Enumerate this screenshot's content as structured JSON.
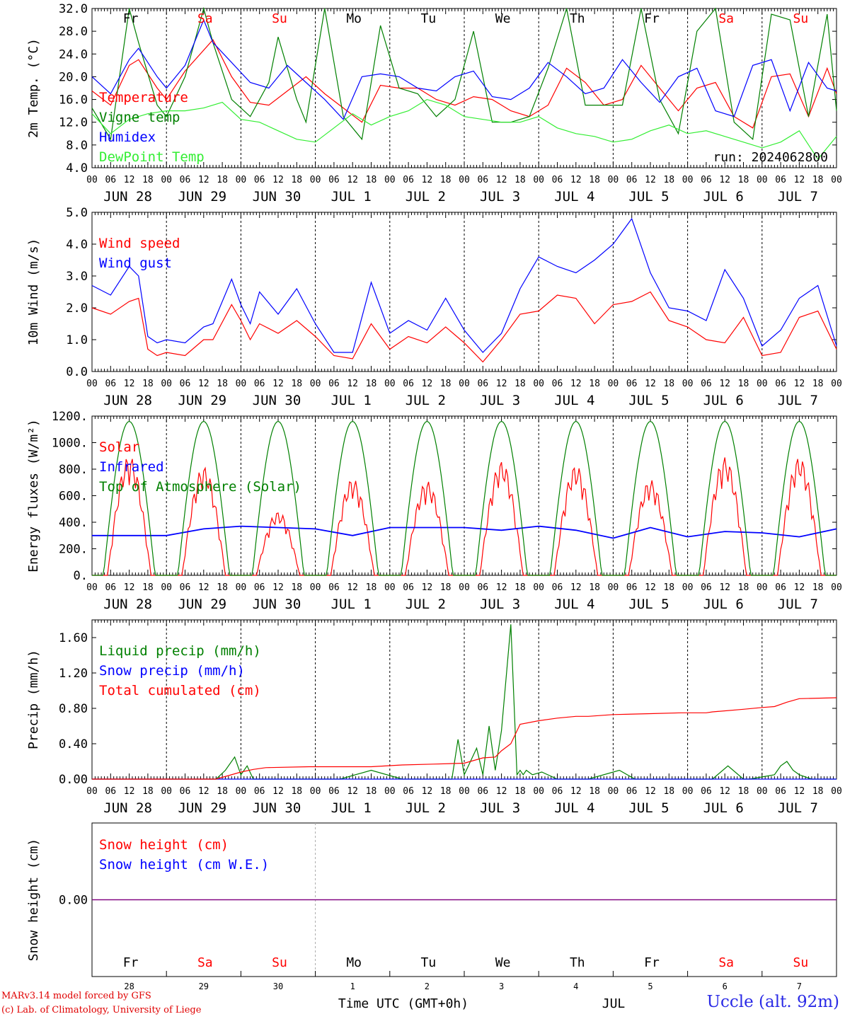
{
  "run": "run: 2024062800",
  "station": "Uccle (alt. 92m)",
  "credits": [
    "MARv3.14 model forced by GFS",
    "(c) Lab. of Climatology, University of Liege"
  ],
  "xaxis_title": "Time UTC (GMT+0h)",
  "month_label": "JUL",
  "hour_ticks": [
    "00",
    "06",
    "12",
    "18"
  ],
  "day_labels": [
    "JUN 28",
    "JUN 29",
    "JUN 30",
    "JUL  1",
    "JUL  2",
    "JUL  3",
    "JUL  4",
    "JUL  5",
    "JUL  6",
    "JUL  7"
  ],
  "day_numbers": [
    "28",
    "29",
    "30",
    "1",
    "2",
    "3",
    "4",
    "5",
    "6",
    "7"
  ],
  "weekdays": [
    {
      "label": "Fr",
      "weekend": false
    },
    {
      "label": "Sa",
      "weekend": true
    },
    {
      "label": "Su",
      "weekend": true
    },
    {
      "label": "Mo",
      "weekend": false
    },
    {
      "label": "Tu",
      "weekend": false
    },
    {
      "label": "We",
      "weekend": false
    },
    {
      "label": "Th",
      "weekend": false
    },
    {
      "label": "Fr",
      "weekend": false
    },
    {
      "label": "Sa",
      "weekend": true
    },
    {
      "label": "Su",
      "weekend": true
    }
  ],
  "colors": {
    "red": "#ff0000",
    "green": "#008000",
    "blue": "#0000ff",
    "lightgreen": "#33ee33",
    "purple": "#800080",
    "weekend": "#ff0000"
  },
  "chart_data": [
    {
      "type": "line",
      "ylabel": "2m Temp. (°C)",
      "yticks": [
        "4.0",
        "8.0",
        "12.0",
        "16.0",
        "20.0",
        "24.0",
        "28.0",
        "32.0"
      ],
      "ylim": [
        4,
        32
      ],
      "x_unit": "hours since JUN 28 00 UTC",
      "series": [
        {
          "name": "Temperature",
          "color": "#ff0000",
          "x": [
            0,
            6,
            12,
            15,
            21,
            24,
            30,
            39,
            45,
            51,
            57,
            63,
            69,
            75,
            81,
            87,
            93,
            99,
            105,
            111,
            117,
            123,
            129,
            135,
            141,
            147,
            153,
            159,
            165,
            171,
            177,
            183,
            189,
            195,
            201,
            207,
            213,
            219,
            225,
            231,
            237,
            240
          ],
          "values": [
            17.5,
            15.0,
            22.0,
            23.0,
            18.0,
            16.0,
            21.0,
            26.5,
            20.0,
            15.5,
            15.0,
            17.5,
            20.0,
            17.0,
            14.5,
            12.0,
            18.5,
            18.0,
            18.0,
            16.0,
            15.0,
            16.5,
            16.0,
            14.0,
            13.0,
            15.0,
            21.5,
            19.0,
            15.0,
            16.0,
            22.0,
            18.0,
            14.0,
            18.0,
            19.0,
            13.0,
            11.0,
            20.0,
            20.5,
            13.0,
            21.5,
            17.0
          ]
        },
        {
          "name": "Vigne temp",
          "color": "#008000",
          "x": [
            0,
            6,
            12,
            15,
            21,
            24,
            30,
            36,
            39,
            45,
            51,
            57,
            60,
            66,
            69,
            75,
            81,
            87,
            93,
            99,
            105,
            111,
            117,
            123,
            129,
            135,
            141,
            147,
            153,
            159,
            165,
            171,
            177,
            183,
            189,
            195,
            201,
            207,
            213,
            219,
            225,
            231,
            237,
            240
          ],
          "values": [
            14.5,
            9.0,
            32.0,
            26.0,
            15.0,
            13.0,
            20.0,
            32.0,
            26.0,
            16.0,
            13.0,
            19.0,
            27.0,
            16.0,
            12.0,
            32.0,
            13.0,
            9.0,
            29.0,
            18.0,
            17.0,
            13.0,
            16.0,
            28.0,
            12.0,
            12.0,
            13.0,
            21.5,
            32.0,
            15.0,
            15.0,
            15.0,
            32.0,
            16.0,
            10.0,
            28.0,
            32.0,
            12.0,
            9.0,
            31.0,
            30.0,
            13.0,
            31.0,
            14.0
          ]
        },
        {
          "name": "Humidex",
          "color": "#0000ff",
          "x": [
            0,
            6,
            12,
            15,
            21,
            24,
            30,
            36,
            39,
            45,
            51,
            57,
            63,
            69,
            75,
            81,
            87,
            93,
            99,
            105,
            111,
            117,
            123,
            129,
            135,
            141,
            147,
            153,
            159,
            165,
            171,
            177,
            183,
            189,
            195,
            201,
            207,
            213,
            219,
            225,
            231,
            237,
            240
          ],
          "values": [
            20.0,
            17.0,
            23.0,
            25.0,
            20.0,
            18.0,
            22.0,
            30.0,
            26.0,
            22.5,
            19.0,
            18.0,
            22.0,
            19.0,
            16.0,
            12.5,
            20.0,
            20.5,
            20.0,
            18.0,
            17.5,
            20.0,
            21.0,
            16.5,
            16.0,
            18.0,
            22.5,
            20.0,
            17.0,
            18.0,
            23.0,
            19.0,
            15.5,
            20.0,
            21.5,
            14.0,
            13.0,
            22.0,
            23.0,
            14.0,
            22.5,
            18.0,
            17.5
          ]
        },
        {
          "name": "DewPoint Temp",
          "color": "#33ee33",
          "x": [
            0,
            6,
            12,
            18,
            24,
            30,
            36,
            42,
            48,
            54,
            60,
            66,
            72,
            78,
            84,
            90,
            96,
            102,
            108,
            114,
            120,
            126,
            132,
            138,
            144,
            150,
            156,
            162,
            168,
            174,
            180,
            186,
            192,
            198,
            204,
            210,
            216,
            222,
            228,
            234,
            240
          ],
          "values": [
            13.5,
            10.0,
            12.5,
            13.5,
            14.0,
            14.0,
            14.5,
            15.5,
            12.5,
            12.0,
            10.5,
            9.0,
            8.5,
            11.0,
            13.5,
            11.5,
            13.0,
            14.0,
            16.0,
            15.0,
            13.0,
            12.5,
            12.0,
            12.0,
            13.0,
            11.0,
            10.0,
            9.5,
            8.5,
            9.0,
            10.5,
            11.5,
            10.0,
            10.5,
            9.5,
            8.5,
            7.5,
            8.5,
            10.5,
            5.5,
            9.5
          ]
        }
      ]
    },
    {
      "type": "line",
      "ylabel": "10m Wind (m/s)",
      "yticks": [
        "0.0",
        "1.0",
        "2.0",
        "3.0",
        "4.0",
        "5.0"
      ],
      "ylim": [
        0,
        5
      ],
      "x_unit": "hours since JUN 28 00 UTC",
      "series": [
        {
          "name": "Wind speed",
          "color": "#ff0000",
          "x": [
            0,
            6,
            12,
            15,
            18,
            21,
            24,
            30,
            36,
            39,
            45,
            48,
            51,
            54,
            60,
            66,
            72,
            78,
            84,
            90,
            96,
            102,
            108,
            114,
            120,
            126,
            132,
            138,
            144,
            150,
            156,
            162,
            168,
            174,
            180,
            186,
            192,
            198,
            204,
            210,
            216,
            222,
            228,
            234,
            240
          ],
          "values": [
            2.0,
            1.8,
            2.2,
            2.3,
            0.7,
            0.5,
            0.6,
            0.5,
            1.0,
            1.0,
            2.1,
            1.6,
            1.0,
            1.5,
            1.2,
            1.6,
            1.1,
            0.5,
            0.4,
            1.5,
            0.7,
            1.1,
            0.9,
            1.4,
            0.9,
            0.3,
            1.0,
            1.8,
            1.9,
            2.4,
            2.3,
            1.5,
            2.1,
            2.2,
            2.5,
            1.6,
            1.4,
            1.0,
            0.9,
            1.7,
            0.5,
            0.6,
            1.7,
            1.9,
            0.7
          ]
        },
        {
          "name": "Wind gust",
          "color": "#0000ff",
          "x": [
            0,
            6,
            12,
            15,
            18,
            21,
            24,
            30,
            36,
            39,
            45,
            48,
            51,
            54,
            60,
            66,
            72,
            78,
            84,
            90,
            96,
            102,
            108,
            114,
            120,
            126,
            132,
            138,
            144,
            150,
            156,
            162,
            168,
            174,
            180,
            186,
            192,
            198,
            204,
            210,
            216,
            222,
            228,
            234,
            240
          ],
          "values": [
            2.7,
            2.4,
            3.3,
            3.0,
            1.1,
            0.9,
            1.0,
            0.9,
            1.4,
            1.5,
            2.9,
            2.1,
            1.5,
            2.5,
            1.8,
            2.6,
            1.5,
            0.6,
            0.6,
            2.8,
            1.2,
            1.6,
            1.3,
            2.3,
            1.3,
            0.6,
            1.2,
            2.6,
            3.6,
            3.3,
            3.1,
            3.5,
            4.0,
            4.8,
            3.1,
            2.0,
            1.9,
            1.6,
            3.2,
            2.3,
            0.8,
            1.3,
            2.3,
            2.7,
            0.8
          ]
        }
      ]
    },
    {
      "type": "line",
      "ylabel": "Energy fluxes (W/m²)",
      "yticks": [
        "0.",
        "200.",
        "400.",
        "600.",
        "800.",
        "1000.",
        "1200."
      ],
      "ylim": [
        0,
        1200
      ],
      "x_unit": "hours since JUN 28 00 UTC",
      "series": [
        {
          "name": "Solar",
          "color": "#ff0000",
          "daily_peak": [
            900,
            820,
            480,
            730,
            710,
            860,
            830,
            720,
            890,
            890
          ]
        },
        {
          "name": "Infrared",
          "color": "#0000ff",
          "x": [
            0,
            12,
            24,
            36,
            48,
            60,
            72,
            84,
            96,
            108,
            120,
            132,
            144,
            156,
            168,
            180,
            192,
            204,
            216,
            228,
            240
          ],
          "values": [
            300,
            300,
            300,
            350,
            370,
            360,
            350,
            300,
            360,
            360,
            360,
            340,
            370,
            340,
            280,
            360,
            290,
            330,
            320,
            290,
            350
          ]
        },
        {
          "name": "Top of Atmosphere (Solar)",
          "color": "#008000",
          "daily_peak": 1160
        }
      ]
    },
    {
      "type": "line",
      "ylabel": "Precip (mm/h)",
      "yticks": [
        "0.00",
        "0.40",
        "0.80",
        "1.20",
        "1.60"
      ],
      "ylim": [
        0,
        1.8
      ],
      "x_unit": "hours since JUN 28 00 UTC",
      "series": [
        {
          "name": "Liquid precip (mm/h)",
          "color": "#008000",
          "x": [
            0,
            40,
            43,
            46,
            48,
            50,
            52,
            60,
            80,
            90,
            100,
            110,
            116,
            118,
            120,
            124,
            126,
            128,
            130,
            132,
            135,
            137,
            138,
            139,
            140,
            142,
            145,
            150,
            160,
            170,
            175,
            180,
            200,
            205,
            210,
            212,
            220,
            222,
            224,
            226,
            228,
            232,
            240
          ],
          "values": [
            0,
            0,
            0.1,
            0.25,
            0.05,
            0.15,
            0,
            0,
            0,
            0.1,
            0,
            0,
            0,
            0.45,
            0.05,
            0.35,
            0.05,
            0.6,
            0.1,
            0.55,
            1.75,
            0.05,
            0.1,
            0.05,
            0.1,
            0.05,
            0.08,
            0,
            0,
            0.1,
            0,
            0,
            0,
            0.15,
            0,
            0,
            0.05,
            0.15,
            0.2,
            0.1,
            0.05,
            0,
            0
          ]
        },
        {
          "name": "Snow precip (mm/h)",
          "color": "#0000ff",
          "x": [
            0,
            240
          ],
          "values": [
            0,
            0
          ]
        },
        {
          "name": "Total cumulated (cm)",
          "color": "#ff0000",
          "x": [
            0,
            40,
            44,
            48,
            52,
            56,
            70,
            90,
            100,
            110,
            120,
            126,
            130,
            132,
            135,
            138,
            144,
            150,
            156,
            160,
            168,
            180,
            190,
            198,
            200,
            210,
            216,
            220,
            224,
            228,
            240
          ],
          "values": [
            0,
            0,
            0.04,
            0.08,
            0.11,
            0.13,
            0.14,
            0.14,
            0.16,
            0.17,
            0.18,
            0.24,
            0.25,
            0.32,
            0.4,
            0.62,
            0.66,
            0.69,
            0.71,
            0.71,
            0.73,
            0.74,
            0.75,
            0.75,
            0.76,
            0.79,
            0.81,
            0.82,
            0.87,
            0.91,
            0.92
          ]
        }
      ]
    },
    {
      "type": "line",
      "ylabel": "Snow height (cm)",
      "yticks": [
        "0.00"
      ],
      "ylim": [
        -1,
        1
      ],
      "x_unit": "hours since JUN 28 00 UTC",
      "series": [
        {
          "name": "Snow height (cm)",
          "color": "#ff0000",
          "x": [
            0,
            240
          ],
          "values": [
            0,
            0
          ]
        },
        {
          "name": "Snow height (cm W.E.)",
          "color": "#0000ff",
          "x": [
            0,
            240
          ],
          "values": [
            0,
            0
          ]
        }
      ]
    }
  ]
}
